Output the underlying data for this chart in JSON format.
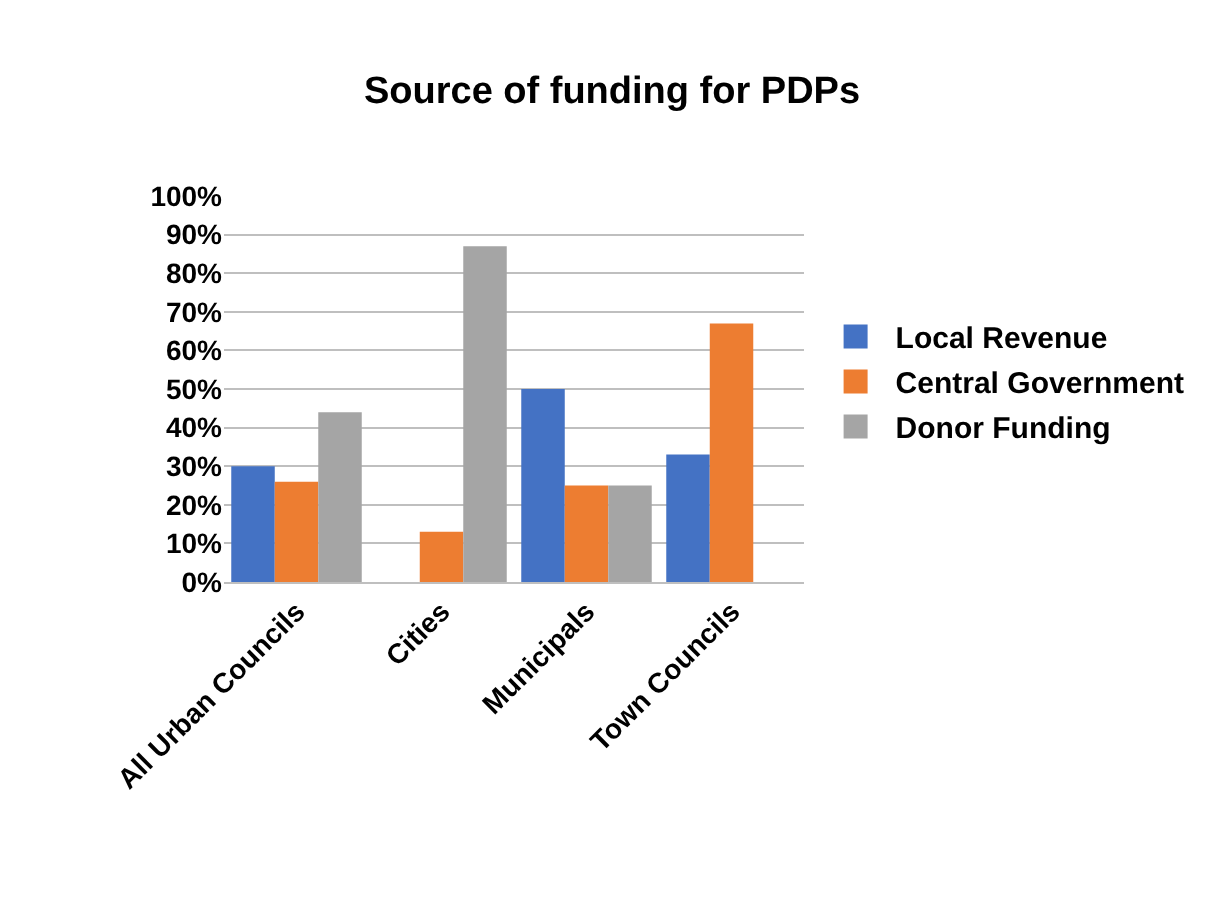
{
  "chart_data": {
    "type": "bar",
    "title": "Source of funding for PDPs",
    "categories": [
      "All Urban Councils",
      "Cities",
      "Municipals",
      "Town Councils"
    ],
    "series": [
      {
        "name": "Local Revenue",
        "color": "#4472c4",
        "values": [
          30,
          0,
          50,
          33
        ]
      },
      {
        "name": "Central Government",
        "color": "#ed7d31",
        "values": [
          26,
          13,
          25,
          67
        ]
      },
      {
        "name": "Donor Funding",
        "color": "#a5a5a5",
        "values": [
          44,
          87,
          25,
          0
        ]
      }
    ],
    "ylim": [
      0,
      100
    ],
    "yticks": [
      {
        "value": 0,
        "label": "0%"
      },
      {
        "value": 10,
        "label": "10%"
      },
      {
        "value": 20,
        "label": "20%"
      },
      {
        "value": 30,
        "label": "30%"
      },
      {
        "value": 40,
        "label": "40%"
      },
      {
        "value": 50,
        "label": "50%"
      },
      {
        "value": 60,
        "label": "60%"
      },
      {
        "value": 70,
        "label": "70%"
      },
      {
        "value": 80,
        "label": "80%"
      },
      {
        "value": 90,
        "label": "90%"
      },
      {
        "value": 100,
        "label": "100%"
      }
    ],
    "grid": "y",
    "legend": "right"
  }
}
